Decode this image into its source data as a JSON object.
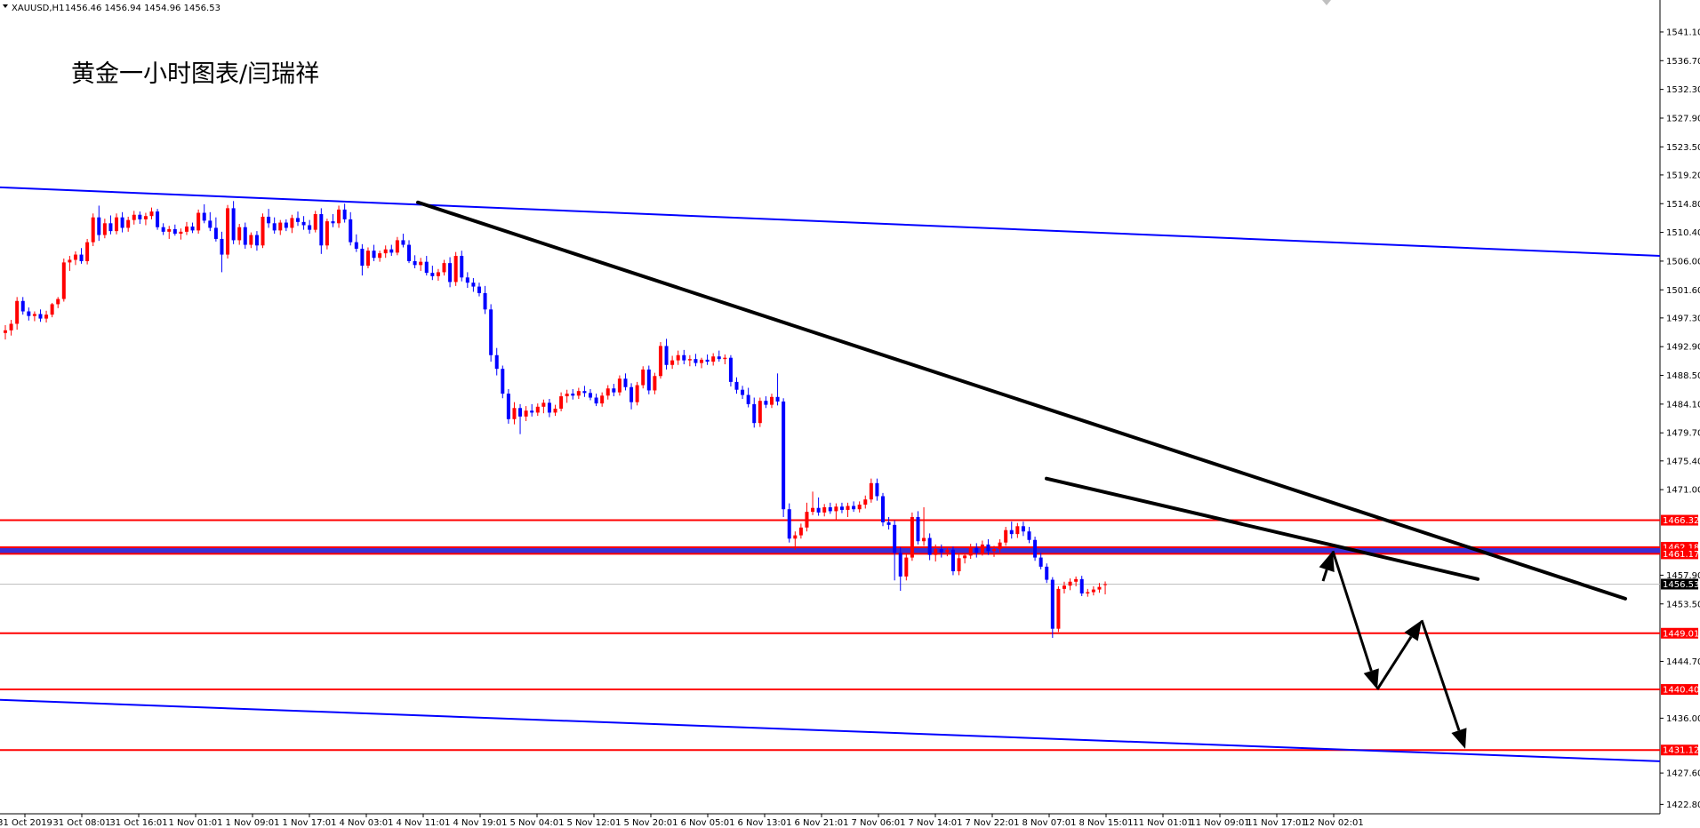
{
  "header": {
    "symbol": "XAUUSD,H1",
    "ohlc": "1456.46 1456.94 1454.96 1456.53"
  },
  "chart_data": {
    "type": "candlestick",
    "title": "黄金一小时图表/闫瑞祥",
    "ylim": [
      1422.8,
      1543.0
    ],
    "price_ticks": [
      "1541.10",
      "1536.70",
      "1532.30",
      "1527.90",
      "1523.50",
      "1519.20",
      "1514.80",
      "1510.40",
      "1506.00",
      "1501.60",
      "1497.30",
      "1492.90",
      "1488.50",
      "1484.10",
      "1479.70",
      "1475.40",
      "1471.00",
      "1457.90",
      "1453.50",
      "1444.70",
      "1436.00",
      "1427.60",
      "1422.80"
    ],
    "time_labels": [
      "31 Oct 2019",
      "31 Oct 08:01",
      "31 Oct 16:01",
      "1 Nov 01:01",
      "1 Nov 09:01",
      "1 Nov 17:01",
      "4 Nov 03:01",
      "4 Nov 11:01",
      "4 Nov 19:01",
      "5 Nov 04:01",
      "5 Nov 12:01",
      "5 Nov 20:01",
      "6 Nov 05:01",
      "6 Nov 13:01",
      "6 Nov 21:01",
      "7 Nov 06:01",
      "7 Nov 14:01",
      "7 Nov 22:01",
      "8 Nov 07:01",
      "8 Nov 15:01",
      "11 Nov 01:01",
      "11 Nov 09:01",
      "11 Nov 17:01",
      "12 Nov 02:01"
    ],
    "current_price": "1456.53",
    "support_resistance_levels": [
      {
        "price": 1466.32,
        "label": "1466.32",
        "color": "#ff0000"
      },
      {
        "price": 1462.18,
        "label": "1462.18",
        "color": "#ff0000"
      },
      {
        "price": 1461.17,
        "label": "1461.17",
        "color": "#ff0000"
      },
      {
        "price": 1449.01,
        "label": "1449.01",
        "color": "#ff0000"
      },
      {
        "price": 1440.4,
        "label": "1440.40",
        "color": "#ff0000"
      },
      {
        "price": 1431.12,
        "label": "1431.12",
        "color": "#ff0000"
      }
    ],
    "blue_band_price": 1461.7,
    "channel_lines": [
      {
        "color": "#0000ff",
        "from": [
          0,
          1517.3
        ],
        "to": [
          1867,
          1506.8
        ]
      },
      {
        "color": "#0000ff",
        "from": [
          0,
          1438.8
        ],
        "to": [
          1867,
          1429.4
        ]
      }
    ],
    "trend_lines": [
      {
        "color": "#000000",
        "from": [
          470,
          1515.0
        ],
        "to": [
          1828,
          1454.3
        ]
      },
      {
        "color": "#000000",
        "from": [
          1177,
          1472.7
        ],
        "to": [
          1662,
          1457.3
        ]
      }
    ],
    "projection_path": [
      [
        1499,
        1461.6
      ],
      [
        1549,
        1440.4
      ],
      [
        1599,
        1451.0
      ],
      [
        1648,
        1431.3
      ]
    ],
    "candle_colors": {
      "up": "#ff0000",
      "down": "#0000ff"
    },
    "candles": [
      [
        1495.0,
        1496.2,
        1494.0,
        1495.4
      ],
      [
        1495.4,
        1497.0,
        1494.6,
        1496.4
      ],
      [
        1496.4,
        1500.5,
        1495.5,
        1499.9
      ],
      [
        1499.9,
        1500.5,
        1497.8,
        1498.3
      ],
      [
        1498.3,
        1498.9,
        1496.9,
        1497.6
      ],
      [
        1497.6,
        1498.3,
        1496.8,
        1497.9
      ],
      [
        1497.9,
        1498.6,
        1496.7,
        1497.2
      ],
      [
        1497.2,
        1498.4,
        1496.6,
        1497.8
      ],
      [
        1497.8,
        1499.6,
        1497.4,
        1499.4
      ],
      [
        1499.4,
        1500.5,
        1498.8,
        1500.2
      ],
      [
        1500.2,
        1506.4,
        1499.8,
        1505.8
      ],
      [
        1505.8,
        1506.8,
        1504.5,
        1506.2
      ],
      [
        1506.2,
        1507.5,
        1505.4,
        1507.0
      ],
      [
        1507.0,
        1508.0,
        1505.6,
        1506.0
      ],
      [
        1506.0,
        1509.4,
        1505.5,
        1508.9
      ],
      [
        1508.9,
        1513.3,
        1508.3,
        1512.7
      ],
      [
        1512.7,
        1514.5,
        1509.1,
        1510.0
      ],
      [
        1510.0,
        1512.5,
        1509.5,
        1511.8
      ],
      [
        1511.8,
        1513.0,
        1510.1,
        1510.6
      ],
      [
        1510.6,
        1513.3,
        1510.1,
        1512.7
      ],
      [
        1512.7,
        1513.5,
        1510.4,
        1511.1
      ],
      [
        1511.1,
        1512.8,
        1510.5,
        1512.3
      ],
      [
        1512.3,
        1513.7,
        1511.6,
        1513.1
      ],
      [
        1513.1,
        1513.6,
        1511.7,
        1512.4
      ],
      [
        1512.4,
        1513.4,
        1511.5,
        1512.9
      ],
      [
        1512.9,
        1514.2,
        1512.4,
        1513.6
      ],
      [
        1513.6,
        1514.0,
        1510.8,
        1511.2
      ],
      [
        1511.2,
        1511.8,
        1510.0,
        1510.5
      ],
      [
        1510.5,
        1511.4,
        1509.4,
        1510.9
      ],
      [
        1510.9,
        1511.6,
        1509.9,
        1510.2
      ],
      [
        1510.2,
        1511.0,
        1509.3,
        1510.5
      ],
      [
        1510.5,
        1512.0,
        1510.0,
        1511.3
      ],
      [
        1511.3,
        1511.9,
        1510.3,
        1510.7
      ],
      [
        1510.7,
        1513.9,
        1510.2,
        1513.4
      ],
      [
        1513.4,
        1514.7,
        1511.8,
        1512.2
      ],
      [
        1512.2,
        1513.5,
        1510.6,
        1511.1
      ],
      [
        1511.1,
        1512.7,
        1509.0,
        1509.4
      ],
      [
        1509.4,
        1510.5,
        1504.3,
        1507.0
      ],
      [
        1507.0,
        1514.6,
        1506.4,
        1514.1
      ],
      [
        1514.1,
        1515.2,
        1508.6,
        1509.2
      ],
      [
        1509.2,
        1511.7,
        1508.5,
        1511.2
      ],
      [
        1511.2,
        1511.9,
        1507.9,
        1508.5
      ],
      [
        1508.5,
        1510.4,
        1508.0,
        1510.0
      ],
      [
        1510.0,
        1510.6,
        1507.6,
        1508.4
      ],
      [
        1508.4,
        1513.3,
        1508.0,
        1512.8
      ],
      [
        1512.8,
        1514.0,
        1511.1,
        1511.8
      ],
      [
        1511.8,
        1512.7,
        1510.2,
        1510.7
      ],
      [
        1510.7,
        1512.3,
        1510.0,
        1511.9
      ],
      [
        1511.9,
        1512.4,
        1510.6,
        1511.1
      ],
      [
        1511.1,
        1513.1,
        1510.3,
        1512.6
      ],
      [
        1512.6,
        1513.6,
        1511.4,
        1512.0
      ],
      [
        1512.0,
        1512.9,
        1510.8,
        1511.5
      ],
      [
        1511.5,
        1512.3,
        1510.2,
        1510.8
      ],
      [
        1510.8,
        1513.7,
        1510.4,
        1513.2
      ],
      [
        1513.2,
        1514.1,
        1507.1,
        1508.4
      ],
      [
        1508.4,
        1512.5,
        1507.8,
        1512.1
      ],
      [
        1512.1,
        1513.2,
        1511.2,
        1511.8
      ],
      [
        1511.8,
        1514.5,
        1511.1,
        1513.9
      ],
      [
        1513.9,
        1514.8,
        1511.9,
        1512.4
      ],
      [
        1512.4,
        1513.5,
        1508.4,
        1508.9
      ],
      [
        1508.9,
        1510.1,
        1507.4,
        1507.9
      ],
      [
        1507.9,
        1508.6,
        1503.8,
        1505.3
      ],
      [
        1505.3,
        1508.1,
        1504.9,
        1507.6
      ],
      [
        1507.6,
        1508.5,
        1506.0,
        1506.5
      ],
      [
        1506.5,
        1507.6,
        1505.9,
        1507.2
      ],
      [
        1507.2,
        1508.4,
        1506.5,
        1507.8
      ],
      [
        1507.8,
        1508.5,
        1506.8,
        1507.3
      ],
      [
        1507.3,
        1509.7,
        1506.9,
        1509.2
      ],
      [
        1509.2,
        1510.2,
        1508.1,
        1508.5
      ],
      [
        1508.5,
        1509.2,
        1505.7,
        1506.0
      ],
      [
        1506.0,
        1506.9,
        1504.9,
        1505.4
      ],
      [
        1505.4,
        1506.5,
        1504.5,
        1505.9
      ],
      [
        1505.9,
        1506.8,
        1503.8,
        1504.2
      ],
      [
        1504.2,
        1505.3,
        1503.1,
        1503.7
      ],
      [
        1503.7,
        1504.8,
        1503.0,
        1504.3
      ],
      [
        1504.3,
        1506.2,
        1503.8,
        1505.7
      ],
      [
        1505.7,
        1506.6,
        1502.0,
        1502.8
      ],
      [
        1502.8,
        1507.4,
        1502.2,
        1506.8
      ],
      [
        1506.8,
        1507.6,
        1502.9,
        1503.5
      ],
      [
        1503.5,
        1504.3,
        1501.9,
        1502.7
      ],
      [
        1502.7,
        1503.4,
        1501.3,
        1502.1
      ],
      [
        1502.1,
        1502.7,
        1500.6,
        1501.1
      ],
      [
        1501.1,
        1502.2,
        1497.9,
        1498.6
      ],
      [
        1498.6,
        1499.4,
        1490.6,
        1491.6
      ],
      [
        1491.6,
        1492.7,
        1488.5,
        1489.5
      ],
      [
        1489.5,
        1490.0,
        1485.0,
        1485.7
      ],
      [
        1485.7,
        1486.4,
        1481.1,
        1481.8
      ],
      [
        1481.8,
        1484.4,
        1481.0,
        1483.5
      ],
      [
        1483.5,
        1484.1,
        1479.5,
        1482.2
      ],
      [
        1482.2,
        1483.8,
        1481.5,
        1483.1
      ],
      [
        1483.1,
        1484.1,
        1482.2,
        1482.8
      ],
      [
        1482.8,
        1484.2,
        1482.3,
        1483.7
      ],
      [
        1483.7,
        1484.8,
        1482.7,
        1484.3
      ],
      [
        1484.3,
        1484.9,
        1482.1,
        1482.8
      ],
      [
        1482.8,
        1484.0,
        1482.3,
        1483.4
      ],
      [
        1483.4,
        1485.9,
        1483.0,
        1485.3
      ],
      [
        1485.3,
        1486.3,
        1484.3,
        1485.7
      ],
      [
        1485.7,
        1486.4,
        1484.8,
        1485.4
      ],
      [
        1485.4,
        1486.6,
        1484.9,
        1486.1
      ],
      [
        1486.1,
        1486.9,
        1485.2,
        1485.8
      ],
      [
        1485.8,
        1486.4,
        1484.7,
        1485.1
      ],
      [
        1485.1,
        1485.7,
        1483.8,
        1484.2
      ],
      [
        1484.2,
        1485.9,
        1483.7,
        1485.4
      ],
      [
        1485.4,
        1487.0,
        1484.8,
        1486.5
      ],
      [
        1486.5,
        1487.2,
        1485.3,
        1485.9
      ],
      [
        1485.9,
        1488.5,
        1485.4,
        1488.0
      ],
      [
        1488.0,
        1488.8,
        1486.2,
        1486.7
      ],
      [
        1486.7,
        1487.3,
        1483.3,
        1484.4
      ],
      [
        1484.4,
        1487.5,
        1483.9,
        1487.0
      ],
      [
        1487.0,
        1489.9,
        1486.5,
        1489.4
      ],
      [
        1489.4,
        1490.0,
        1485.6,
        1486.2
      ],
      [
        1486.2,
        1488.9,
        1485.6,
        1488.4
      ],
      [
        1488.4,
        1493.6,
        1488.0,
        1493.0
      ],
      [
        1493.0,
        1494.1,
        1489.4,
        1490.1
      ],
      [
        1490.1,
        1491.5,
        1489.5,
        1490.8
      ],
      [
        1490.8,
        1492.3,
        1490.1,
        1491.6
      ],
      [
        1491.6,
        1492.4,
        1490.2,
        1490.8
      ],
      [
        1490.8,
        1491.6,
        1489.9,
        1491.0
      ],
      [
        1491.0,
        1491.8,
        1489.9,
        1490.4
      ],
      [
        1490.4,
        1491.2,
        1489.6,
        1490.9
      ],
      [
        1490.9,
        1491.7,
        1490.1,
        1490.6
      ],
      [
        1490.6,
        1491.9,
        1490.0,
        1491.4
      ],
      [
        1491.4,
        1492.3,
        1490.6,
        1491.0
      ],
      [
        1491.0,
        1491.7,
        1490.2,
        1491.2
      ],
      [
        1491.2,
        1491.6,
        1486.8,
        1487.5
      ],
      [
        1487.5,
        1488.2,
        1485.7,
        1486.3
      ],
      [
        1486.3,
        1486.9,
        1484.9,
        1485.5
      ],
      [
        1485.5,
        1486.6,
        1483.6,
        1484.1
      ],
      [
        1484.1,
        1485.1,
        1480.5,
        1481.2
      ],
      [
        1481.2,
        1485.1,
        1480.6,
        1484.6
      ],
      [
        1484.6,
        1485.3,
        1483.5,
        1484.0
      ],
      [
        1484.0,
        1485.7,
        1483.5,
        1485.2
      ],
      [
        1485.2,
        1488.8,
        1483.9,
        1484.5
      ],
      [
        1484.5,
        1485.0,
        1466.8,
        1468.0
      ],
      [
        1468.0,
        1468.9,
        1462.9,
        1463.5
      ],
      [
        1463.5,
        1464.6,
        1461.8,
        1464.0
      ],
      [
        1464.0,
        1465.8,
        1463.5,
        1465.2
      ],
      [
        1465.2,
        1469.0,
        1464.6,
        1467.6
      ],
      [
        1467.6,
        1470.7,
        1467.1,
        1468.2
      ],
      [
        1468.2,
        1469.8,
        1467.0,
        1467.5
      ],
      [
        1467.5,
        1468.8,
        1466.9,
        1468.3
      ],
      [
        1468.3,
        1469.0,
        1467.3,
        1467.7
      ],
      [
        1467.7,
        1468.9,
        1466.4,
        1468.4
      ],
      [
        1468.4,
        1469.0,
        1467.4,
        1467.9
      ],
      [
        1467.9,
        1469.0,
        1466.8,
        1468.5
      ],
      [
        1468.5,
        1469.2,
        1467.6,
        1468.0
      ],
      [
        1468.0,
        1469.2,
        1467.5,
        1468.7
      ],
      [
        1468.7,
        1470.1,
        1468.1,
        1469.5
      ],
      [
        1469.5,
        1472.7,
        1469.0,
        1472.0
      ],
      [
        1472.0,
        1472.7,
        1469.3,
        1470.0
      ],
      [
        1470.0,
        1470.5,
        1465.4,
        1466.0
      ],
      [
        1466.0,
        1466.8,
        1464.9,
        1465.6
      ],
      [
        1465.6,
        1466.3,
        1457.1,
        1461.3
      ],
      [
        1461.3,
        1462.2,
        1455.5,
        1457.7
      ],
      [
        1457.7,
        1461.3,
        1457.1,
        1460.6
      ],
      [
        1460.6,
        1467.5,
        1460.1,
        1466.8
      ],
      [
        1466.8,
        1467.7,
        1462.6,
        1463.1
      ],
      [
        1463.1,
        1468.3,
        1462.4,
        1463.6
      ],
      [
        1463.6,
        1464.3,
        1460.2,
        1461.0
      ],
      [
        1461.0,
        1462.6,
        1460.0,
        1461.9
      ],
      [
        1461.9,
        1462.6,
        1460.6,
        1461.4
      ],
      [
        1461.4,
        1462.3,
        1460.8,
        1461.8
      ],
      [
        1461.8,
        1462.3,
        1457.9,
        1458.5
      ],
      [
        1458.5,
        1461.1,
        1457.9,
        1460.5
      ],
      [
        1460.5,
        1461.2,
        1459.7,
        1460.9
      ],
      [
        1460.9,
        1462.7,
        1460.4,
        1462.1
      ],
      [
        1462.1,
        1462.8,
        1460.6,
        1461.3
      ],
      [
        1461.3,
        1463.2,
        1460.9,
        1462.6
      ],
      [
        1462.6,
        1463.4,
        1461.0,
        1461.6
      ],
      [
        1461.6,
        1462.4,
        1460.7,
        1461.9
      ],
      [
        1461.9,
        1463.4,
        1461.4,
        1462.9
      ],
      [
        1462.9,
        1465.3,
        1462.4,
        1464.8
      ],
      [
        1464.8,
        1466.1,
        1463.5,
        1464.2
      ],
      [
        1464.2,
        1465.9,
        1463.6,
        1465.4
      ],
      [
        1465.4,
        1466.1,
        1463.9,
        1464.6
      ],
      [
        1464.6,
        1465.3,
        1462.8,
        1463.3
      ],
      [
        1463.3,
        1463.8,
        1460.1,
        1460.6
      ],
      [
        1460.6,
        1461.3,
        1458.8,
        1459.2
      ],
      [
        1459.2,
        1459.7,
        1456.7,
        1457.2
      ],
      [
        1457.2,
        1457.6,
        1448.3,
        1449.7
      ],
      [
        1449.7,
        1456.2,
        1449.2,
        1455.8
      ],
      [
        1455.8,
        1456.9,
        1455.1,
        1456.3
      ],
      [
        1456.3,
        1457.4,
        1455.6,
        1456.9
      ],
      [
        1456.9,
        1457.7,
        1456.2,
        1457.3
      ],
      [
        1457.3,
        1457.8,
        1454.7,
        1455.1
      ],
      [
        1455.1,
        1455.8,
        1454.6,
        1455.3
      ],
      [
        1455.3,
        1456.2,
        1454.8,
        1455.7
      ],
      [
        1455.7,
        1456.7,
        1455.2,
        1456.1
      ],
      [
        1456.46,
        1456.94,
        1454.96,
        1456.53
      ]
    ]
  }
}
